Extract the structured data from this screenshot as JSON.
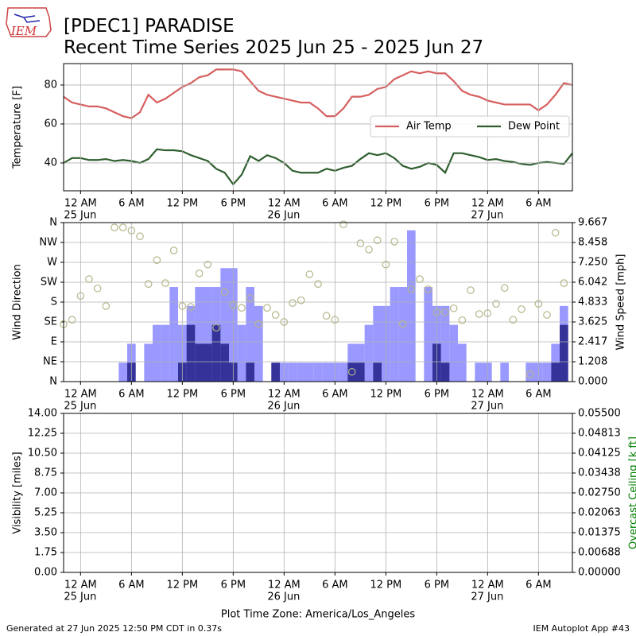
{
  "title": "[PDEC1] PARADISE",
  "subtitle": "Recent Time Series 2025 Jun 25 - 2025 Jun 27",
  "logo_text": "IEM",
  "xlabel": "Plot Time Zone: America/Los_Angeles",
  "footer_left": "Generated at 27 Jun 2025 12:50 PM CDT in 0.37s",
  "footer_right": "IEM Autoplot App #43",
  "chart_data": [
    {
      "type": "line",
      "ylabel": "Temperature [F]",
      "grid": true,
      "legend": "right",
      "xlim": [
        -2,
        58
      ],
      "ylim": [
        25.7,
        91
      ],
      "yticks": [
        40,
        60,
        80
      ],
      "xticks": [
        {
          "value": 0,
          "label": "12 AM",
          "sublabel": "25 Jun"
        },
        {
          "value": 6,
          "label": "6 AM"
        },
        {
          "value": 12,
          "label": "12 PM"
        },
        {
          "value": 18,
          "label": "6 PM"
        },
        {
          "value": 24,
          "label": "12 AM",
          "sublabel": "26 Jun"
        },
        {
          "value": 30,
          "label": "6 AM"
        },
        {
          "value": 36,
          "label": "12 PM"
        },
        {
          "value": 42,
          "label": "6 PM"
        },
        {
          "value": 48,
          "label": "12 AM",
          "sublabel": "27 Jun"
        },
        {
          "value": 54,
          "label": "6 AM"
        }
      ],
      "x": [
        -2,
        -1,
        0,
        1,
        2,
        3,
        4,
        5,
        6,
        7,
        8,
        9,
        10,
        11,
        12,
        13,
        14,
        15,
        16,
        17,
        18,
        19,
        20,
        21,
        22,
        23,
        24,
        25,
        26,
        27,
        28,
        29,
        30,
        31,
        32,
        33,
        34,
        35,
        36,
        37,
        38,
        39,
        40,
        41,
        42,
        43,
        44,
        45,
        46,
        47,
        48,
        49,
        50,
        51,
        52,
        53,
        54,
        55,
        56,
        57,
        58
      ],
      "series": [
        {
          "name": "Air Temp",
          "color": "#d65f5f",
          "values": [
            74,
            71,
            70,
            69,
            69,
            68,
            66,
            64,
            63,
            66,
            75,
            71,
            73,
            76,
            79,
            81,
            84,
            85,
            88,
            88,
            88,
            87,
            82,
            77,
            75,
            74,
            73,
            72,
            71,
            71,
            68,
            64,
            64,
            68,
            74,
            74,
            75,
            78,
            79,
            83,
            85,
            87,
            86,
            87,
            86,
            86,
            82,
            77,
            75,
            74,
            72,
            71,
            70,
            70,
            70,
            70,
            67,
            70,
            75,
            81,
            80
          ]
        },
        {
          "name": "Dew Point",
          "color": "#2e5e2e",
          "values": [
            40,
            42.5,
            42.5,
            41.5,
            41.5,
            42,
            41,
            41.5,
            41,
            40,
            42,
            47,
            46.5,
            46.5,
            46,
            44,
            42.5,
            41,
            37,
            35,
            29,
            34,
            43.5,
            41,
            44,
            42.5,
            40,
            36,
            35,
            35,
            35,
            37,
            36,
            37.5,
            38.5,
            42,
            45,
            44,
            45,
            42.5,
            38.5,
            37,
            38,
            40,
            39,
            35,
            45,
            45,
            44,
            43,
            41.5,
            42,
            41,
            40.5,
            39.5,
            39,
            40,
            40.5,
            40,
            39.5,
            45
          ]
        }
      ]
    },
    {
      "type": "bar",
      "ylabel": "Wind Direction",
      "y2label": "Wind Speed [mph]",
      "grid": true,
      "xlim": [
        -2,
        58
      ],
      "ylim": [
        0,
        360
      ],
      "y2lim": [
        0,
        9.667
      ],
      "yticks": [
        {
          "value": 0,
          "label": "N"
        },
        {
          "value": 45,
          "label": "NE"
        },
        {
          "value": 90,
          "label": "E"
        },
        {
          "value": 135,
          "label": "SE"
        },
        {
          "value": 180,
          "label": "S"
        },
        {
          "value": 225,
          "label": "SW"
        },
        {
          "value": 270,
          "label": "W"
        },
        {
          "value": 315,
          "label": "NW"
        },
        {
          "value": 360,
          "label": "N"
        }
      ],
      "y2ticks": [
        {
          "value": 0,
          "label": "0.000"
        },
        1.208,
        2.417,
        3.625,
        4.833,
        6.042,
        {
          "value": 7.25,
          "label": "7.250"
        },
        8.458,
        9.667
      ],
      "xticks": [
        {
          "value": 0,
          "label": "12 AM",
          "sublabel": "25 Jun"
        },
        {
          "value": 6,
          "label": "6 AM"
        },
        {
          "value": 12,
          "label": "12 PM"
        },
        {
          "value": 18,
          "label": "6 PM"
        },
        {
          "value": 24,
          "label": "12 AM",
          "sublabel": "26 Jun"
        },
        {
          "value": 30,
          "label": "6 AM"
        },
        {
          "value": 36,
          "label": "12 PM"
        },
        {
          "value": 42,
          "label": "6 PM"
        },
        {
          "value": 48,
          "label": "12 AM",
          "sublabel": "27 Jun"
        },
        {
          "value": 54,
          "label": "6 AM"
        }
      ],
      "x": [
        -2,
        -1,
        0,
        1,
        2,
        3,
        4,
        5,
        6,
        7,
        8,
        9,
        10,
        11,
        12,
        13,
        14,
        15,
        16,
        17,
        18,
        19,
        20,
        21,
        22,
        23,
        24,
        25,
        26,
        27,
        28,
        29,
        30,
        31,
        32,
        33,
        34,
        35,
        36,
        37,
        38,
        39,
        40,
        41,
        42,
        43,
        44,
        45,
        46,
        47,
        48,
        49,
        50,
        51,
        52,
        53,
        54,
        55,
        56,
        57
      ],
      "series": [
        {
          "type": "bar",
          "axis": "y2",
          "color": "#9999ff",
          "values": [
            0,
            0,
            0,
            0,
            0,
            0,
            0,
            1.15,
            2.3,
            0,
            2.3,
            3.45,
            3.45,
            5.75,
            3.45,
            4.6,
            5.75,
            5.75,
            5.75,
            6.9,
            6.9,
            3.45,
            5.75,
            4.6,
            0,
            1.15,
            1.15,
            1.15,
            1.15,
            1.15,
            1.15,
            1.15,
            1.15,
            1.15,
            2.3,
            2.3,
            3.45,
            4.6,
            4.6,
            5.75,
            5.75,
            9.2,
            0,
            5.75,
            4.6,
            4.6,
            3.45,
            2.3,
            0,
            1.15,
            1.15,
            0,
            1.15,
            0,
            0,
            1.15,
            1.15,
            1.15,
            2.3,
            4.6
          ]
        },
        {
          "type": "bar",
          "axis": "y2",
          "color": "#333399",
          "values": [
            0,
            0,
            0,
            0,
            0,
            0,
            0,
            0,
            1.15,
            0,
            0,
            0,
            0,
            0,
            1.15,
            3.45,
            2.3,
            2.3,
            3.45,
            2.3,
            1.15,
            0,
            1.15,
            0,
            0,
            1.15,
            0,
            0,
            0,
            0,
            0,
            0,
            0,
            0,
            1.15,
            1.15,
            0,
            1.15,
            0,
            0,
            0,
            0,
            0,
            0,
            2.3,
            1.15,
            0,
            0,
            0,
            0,
            0,
            0,
            0,
            0,
            0,
            0,
            0,
            0,
            1.15,
            3.45
          ]
        },
        {
          "type": "scatter",
          "axis": "y",
          "color": "#b5b58a",
          "values": [
            130,
            140,
            194,
            232,
            211,
            171,
            349,
            349,
            342,
            329,
            221,
            275,
            223,
            297,
            171,
            169,
            245,
            265,
            122,
            203,
            173,
            167,
            189,
            130,
            167,
            151,
            135,
            178,
            184,
            243,
            221,
            149,
            140,
            356,
            22,
            313,
            299,
            320,
            265,
            317,
            130,
            209,
            232,
            209,
            157,
            157,
            166,
            139,
            207,
            153,
            155,
            176,
            212,
            140,
            164,
            16,
            176,
            151,
            337,
            223
          ]
        }
      ]
    },
    {
      "type": "line",
      "ylabel": "Visibility [miles]",
      "y2label": "Overcast Ceiling [k ft]",
      "y2color": "#008000",
      "grid": true,
      "xlim": [
        -2,
        58
      ],
      "ylim": [
        0,
        14
      ],
      "y2lim": [
        0,
        0.055
      ],
      "yticks": [
        {
          "value": 0,
          "label": "0.00"
        },
        1.75,
        {
          "value": 3.5,
          "label": "3.50"
        },
        5.25,
        {
          "value": 7,
          "label": "7.00"
        },
        8.75,
        {
          "value": 10.5,
          "label": "10.50"
        },
        12.25,
        {
          "value": 14,
          "label": "14.00"
        }
      ],
      "y2ticks": [
        {
          "value": 0,
          "label": "0.00000"
        },
        {
          "value": 0.006875,
          "label": "0.00688"
        },
        {
          "value": 0.01375,
          "label": "0.01375"
        },
        {
          "value": 0.020625,
          "label": "0.02063"
        },
        {
          "value": 0.0275,
          "label": "0.02750"
        },
        {
          "value": 0.034375,
          "label": "0.03438"
        },
        {
          "value": 0.04125,
          "label": "0.04125"
        },
        {
          "value": 0.048125,
          "label": "0.04813"
        },
        {
          "value": 0.055,
          "label": "0.05500"
        }
      ],
      "xticks": [
        {
          "value": 0,
          "label": "12 AM",
          "sublabel": "25 Jun"
        },
        {
          "value": 6,
          "label": "6 AM"
        },
        {
          "value": 12,
          "label": "12 PM"
        },
        {
          "value": 18,
          "label": "6 PM"
        },
        {
          "value": 24,
          "label": "12 AM",
          "sublabel": "26 Jun"
        },
        {
          "value": 30,
          "label": "6 AM"
        },
        {
          "value": 36,
          "label": "12 PM"
        },
        {
          "value": 42,
          "label": "6 PM"
        },
        {
          "value": 48,
          "label": "12 AM",
          "sublabel": "27 Jun"
        },
        {
          "value": 54,
          "label": "6 AM"
        }
      ],
      "series": []
    }
  ]
}
